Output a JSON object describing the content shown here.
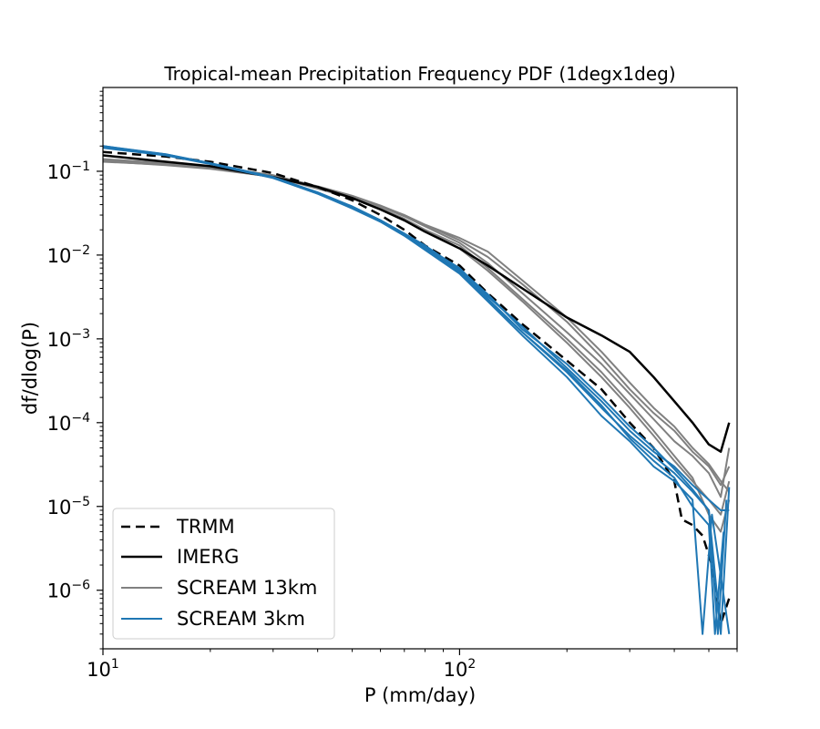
{
  "chart_data": {
    "type": "line",
    "title": "Tropical-mean Precipitation Frequency PDF (1degx1deg)",
    "xlabel": "P (mm/day)",
    "ylabel": "df/dlog(P)",
    "xscale": "log",
    "yscale": "log",
    "xlim": [
      10,
      600
    ],
    "ylim": [
      2e-07,
      1
    ],
    "x_major_ticks": [
      {
        "value": 10,
        "base": "10",
        "exp": "1"
      },
      {
        "value": 100,
        "base": "10",
        "exp": "2"
      }
    ],
    "y_major_ticks": [
      {
        "value": 0.1,
        "base": "10",
        "exp": "−1"
      },
      {
        "value": 0.01,
        "base": "10",
        "exp": "−2"
      },
      {
        "value": 0.001,
        "base": "10",
        "exp": "−3"
      },
      {
        "value": 0.0001,
        "base": "10",
        "exp": "−4"
      },
      {
        "value": 1e-05,
        "base": "10",
        "exp": "−5"
      },
      {
        "value": 1e-06,
        "base": "10",
        "exp": "−6"
      }
    ],
    "legend": {
      "location": "lower-left",
      "entries": [
        {
          "label": "TRMM",
          "color": "#000000",
          "style": "dashed"
        },
        {
          "label": "IMERG",
          "color": "#000000",
          "style": "solid"
        },
        {
          "label": "SCREAM 13km",
          "color": "#808080",
          "style": "solid"
        },
        {
          "label": "SCREAM 3km",
          "color": "#1f77b4",
          "style": "solid"
        }
      ]
    },
    "series": [
      {
        "name": "TRMM",
        "color": "#000000",
        "dash": "10,6",
        "width": 2.5,
        "points": [
          [
            10,
            0.17
          ],
          [
            15,
            0.15
          ],
          [
            20,
            0.13
          ],
          [
            30,
            0.095
          ],
          [
            40,
            0.065
          ],
          [
            50,
            0.045
          ],
          [
            60,
            0.03
          ],
          [
            70,
            0.02
          ],
          [
            80,
            0.013
          ],
          [
            100,
            0.0075
          ],
          [
            120,
            0.0035
          ],
          [
            150,
            0.0015
          ],
          [
            200,
            0.00055
          ],
          [
            250,
            0.00025
          ],
          [
            300,
            0.0001
          ],
          [
            350,
            5e-05
          ],
          [
            400,
            2e-05
          ],
          [
            420,
            7e-06
          ],
          [
            450,
            6e-06
          ],
          [
            480,
            4.5e-06
          ],
          [
            510,
            2e-06
          ],
          [
            540,
            4e-07
          ],
          [
            570,
            8e-07
          ]
        ]
      },
      {
        "name": "IMERG",
        "color": "#000000",
        "dash": "",
        "width": 2.5,
        "points": [
          [
            10,
            0.155
          ],
          [
            15,
            0.13
          ],
          [
            20,
            0.115
          ],
          [
            30,
            0.085
          ],
          [
            40,
            0.065
          ],
          [
            50,
            0.048
          ],
          [
            60,
            0.035
          ],
          [
            70,
            0.026
          ],
          [
            80,
            0.019
          ],
          [
            100,
            0.012
          ],
          [
            120,
            0.0075
          ],
          [
            150,
            0.004
          ],
          [
            200,
            0.0018
          ],
          [
            250,
            0.0011
          ],
          [
            300,
            0.0007
          ],
          [
            350,
            0.00035
          ],
          [
            400,
            0.00018
          ],
          [
            450,
            0.0001
          ],
          [
            500,
            5.5e-05
          ],
          [
            540,
            4.5e-05
          ],
          [
            570,
            0.0001
          ]
        ]
      },
      {
        "name": "SCREAM 13km",
        "member": 1,
        "color": "#808080",
        "dash": "",
        "width": 2,
        "points": [
          [
            10,
            0.14
          ],
          [
            15,
            0.125
          ],
          [
            20,
            0.115
          ],
          [
            30,
            0.09
          ],
          [
            40,
            0.065
          ],
          [
            50,
            0.05
          ],
          [
            60,
            0.038
          ],
          [
            70,
            0.029
          ],
          [
            80,
            0.022
          ],
          [
            100,
            0.014
          ],
          [
            120,
            0.008
          ],
          [
            150,
            0.0035
          ],
          [
            200,
            0.0012
          ],
          [
            250,
            0.0005
          ],
          [
            300,
            0.00022
          ],
          [
            350,
            0.00011
          ],
          [
            400,
            6e-05
          ],
          [
            450,
            4e-05
          ],
          [
            500,
            2.5e-05
          ],
          [
            540,
            1.3e-05
          ],
          [
            570,
            5e-05
          ]
        ]
      },
      {
        "name": "SCREAM 13km",
        "member": 2,
        "color": "#808080",
        "dash": "",
        "width": 2,
        "points": [
          [
            10,
            0.135
          ],
          [
            15,
            0.12
          ],
          [
            20,
            0.11
          ],
          [
            30,
            0.088
          ],
          [
            40,
            0.064
          ],
          [
            50,
            0.05
          ],
          [
            60,
            0.038
          ],
          [
            70,
            0.03
          ],
          [
            80,
            0.023
          ],
          [
            100,
            0.015
          ],
          [
            120,
            0.0095
          ],
          [
            150,
            0.0045
          ],
          [
            200,
            0.0016
          ],
          [
            250,
            0.0006
          ],
          [
            300,
            0.00025
          ],
          [
            350,
            0.00013
          ],
          [
            400,
            8e-05
          ],
          [
            450,
            4.5e-05
          ],
          [
            500,
            3e-05
          ],
          [
            540,
            1.8e-05
          ],
          [
            570,
            3e-05
          ]
        ]
      },
      {
        "name": "SCREAM 13km",
        "member": 3,
        "color": "#808080",
        "dash": "",
        "width": 2,
        "points": [
          [
            10,
            0.13
          ],
          [
            15,
            0.12
          ],
          [
            20,
            0.108
          ],
          [
            30,
            0.087
          ],
          [
            40,
            0.063
          ],
          [
            50,
            0.049
          ],
          [
            60,
            0.036
          ],
          [
            70,
            0.027
          ],
          [
            80,
            0.02
          ],
          [
            100,
            0.012
          ],
          [
            120,
            0.0065
          ],
          [
            150,
            0.0028
          ],
          [
            200,
            0.0009
          ],
          [
            250,
            0.00035
          ],
          [
            300,
            0.00015
          ],
          [
            350,
            7e-05
          ],
          [
            400,
            3.5e-05
          ],
          [
            450,
            2e-05
          ],
          [
            500,
            1.2e-05
          ],
          [
            540,
            8e-06
          ],
          [
            570,
            2e-05
          ]
        ]
      },
      {
        "name": "SCREAM 13km",
        "member": 4,
        "color": "#808080",
        "dash": "",
        "width": 2,
        "points": [
          [
            10,
            0.138
          ],
          [
            15,
            0.122
          ],
          [
            20,
            0.112
          ],
          [
            30,
            0.089
          ],
          [
            40,
            0.066
          ],
          [
            50,
            0.051
          ],
          [
            60,
            0.039
          ],
          [
            70,
            0.03
          ],
          [
            80,
            0.023
          ],
          [
            100,
            0.016
          ],
          [
            120,
            0.011
          ],
          [
            150,
            0.005
          ],
          [
            200,
            0.0018
          ],
          [
            250,
            0.0007
          ],
          [
            300,
            0.0003
          ],
          [
            350,
            0.00015
          ],
          [
            400,
            9e-05
          ],
          [
            450,
            5e-05
          ],
          [
            500,
            3.2e-05
          ],
          [
            540,
            2e-05
          ],
          [
            570,
            1.5e-05
          ]
        ]
      },
      {
        "name": "SCREAM 13km",
        "member": 5,
        "color": "#808080",
        "dash": "",
        "width": 2,
        "points": [
          [
            10,
            0.132
          ],
          [
            15,
            0.118
          ],
          [
            20,
            0.107
          ],
          [
            30,
            0.086
          ],
          [
            40,
            0.062
          ],
          [
            50,
            0.048
          ],
          [
            60,
            0.036
          ],
          [
            70,
            0.027
          ],
          [
            80,
            0.02
          ],
          [
            100,
            0.013
          ],
          [
            120,
            0.007
          ],
          [
            150,
            0.003
          ],
          [
            200,
            0.001
          ],
          [
            250,
            0.0004
          ],
          [
            300,
            0.00017
          ],
          [
            350,
            8e-05
          ],
          [
            400,
            4e-05
          ],
          [
            450,
            2.2e-05
          ],
          [
            500,
            8e-06
          ],
          [
            540,
            5e-06
          ],
          [
            570,
            1.2e-05
          ]
        ]
      },
      {
        "name": "SCREAM 3km",
        "member": 1,
        "color": "#1f77b4",
        "dash": "",
        "width": 2,
        "points": [
          [
            10,
            0.2
          ],
          [
            15,
            0.16
          ],
          [
            20,
            0.125
          ],
          [
            30,
            0.085
          ],
          [
            40,
            0.055
          ],
          [
            50,
            0.038
          ],
          [
            60,
            0.026
          ],
          [
            70,
            0.018
          ],
          [
            80,
            0.012
          ],
          [
            100,
            0.0065
          ],
          [
            120,
            0.003
          ],
          [
            150,
            0.0012
          ],
          [
            200,
            0.0004
          ],
          [
            250,
            0.00015
          ],
          [
            300,
            7e-05
          ],
          [
            350,
            4e-05
          ],
          [
            400,
            2.5e-05
          ],
          [
            450,
            1.5e-05
          ],
          [
            500,
            9e-06
          ],
          [
            540,
            3e-07
          ],
          [
            570,
            1.7e-05
          ]
        ]
      },
      {
        "name": "SCREAM 3km",
        "member": 2,
        "color": "#1f77b4",
        "dash": "",
        "width": 2,
        "points": [
          [
            10,
            0.19
          ],
          [
            15,
            0.155
          ],
          [
            20,
            0.122
          ],
          [
            30,
            0.083
          ],
          [
            40,
            0.054
          ],
          [
            50,
            0.037
          ],
          [
            60,
            0.026
          ],
          [
            70,
            0.018
          ],
          [
            80,
            0.0125
          ],
          [
            100,
            0.007
          ],
          [
            120,
            0.0032
          ],
          [
            150,
            0.0014
          ],
          [
            200,
            0.00045
          ],
          [
            250,
            0.00018
          ],
          [
            300,
            8e-05
          ],
          [
            350,
            4.5e-05
          ],
          [
            400,
            3e-05
          ],
          [
            450,
            1.8e-05
          ],
          [
            500,
            1.2e-05
          ],
          [
            540,
            9e-06
          ],
          [
            570,
            9e-06
          ]
        ]
      },
      {
        "name": "SCREAM 3km",
        "member": 3,
        "color": "#1f77b4",
        "dash": "",
        "width": 2,
        "points": [
          [
            10,
            0.2
          ],
          [
            15,
            0.158
          ],
          [
            20,
            0.123
          ],
          [
            30,
            0.084
          ],
          [
            40,
            0.055
          ],
          [
            50,
            0.037
          ],
          [
            60,
            0.025
          ],
          [
            70,
            0.017
          ],
          [
            80,
            0.0115
          ],
          [
            100,
            0.006
          ],
          [
            120,
            0.0028
          ],
          [
            150,
            0.0011
          ],
          [
            200,
            0.00035
          ],
          [
            250,
            0.00012
          ],
          [
            300,
            6e-05
          ],
          [
            350,
            3e-05
          ],
          [
            400,
            2e-05
          ],
          [
            450,
            1.2e-05
          ],
          [
            480,
            3e-07
          ],
          [
            510,
            8e-06
          ],
          [
            570,
            3e-07
          ]
        ]
      },
      {
        "name": "SCREAM 3km",
        "member": 4,
        "color": "#1f77b4",
        "dash": "",
        "width": 2,
        "points": [
          [
            10,
            0.195
          ],
          [
            15,
            0.157
          ],
          [
            20,
            0.124
          ],
          [
            30,
            0.085
          ],
          [
            40,
            0.056
          ],
          [
            50,
            0.038
          ],
          [
            60,
            0.026
          ],
          [
            70,
            0.018
          ],
          [
            80,
            0.013
          ],
          [
            100,
            0.0068
          ],
          [
            120,
            0.0034
          ],
          [
            150,
            0.0013
          ],
          [
            200,
            0.0005
          ],
          [
            250,
            0.0002
          ],
          [
            300,
            9e-05
          ],
          [
            350,
            5e-05
          ],
          [
            400,
            2.8e-05
          ],
          [
            450,
            1.6e-05
          ],
          [
            500,
            9e-06
          ],
          [
            530,
            3e-07
          ],
          [
            560,
            1.2e-05
          ]
        ]
      },
      {
        "name": "SCREAM 3km",
        "member": 5,
        "color": "#1f77b4",
        "dash": "",
        "width": 2,
        "points": [
          [
            10,
            0.198
          ],
          [
            15,
            0.159
          ],
          [
            20,
            0.124
          ],
          [
            30,
            0.084
          ],
          [
            40,
            0.054
          ],
          [
            50,
            0.036
          ],
          [
            60,
            0.025
          ],
          [
            70,
            0.017
          ],
          [
            80,
            0.012
          ],
          [
            100,
            0.0062
          ],
          [
            120,
            0.0029
          ],
          [
            150,
            0.0012
          ],
          [
            200,
            0.00042
          ],
          [
            250,
            0.00016
          ],
          [
            300,
            6.5e-05
          ],
          [
            350,
            3.5e-05
          ],
          [
            400,
            2.2e-05
          ],
          [
            450,
            1e-05
          ],
          [
            500,
            6e-06
          ],
          [
            520,
            3e-07
          ],
          [
            550,
            5e-06
          ]
        ]
      }
    ]
  }
}
